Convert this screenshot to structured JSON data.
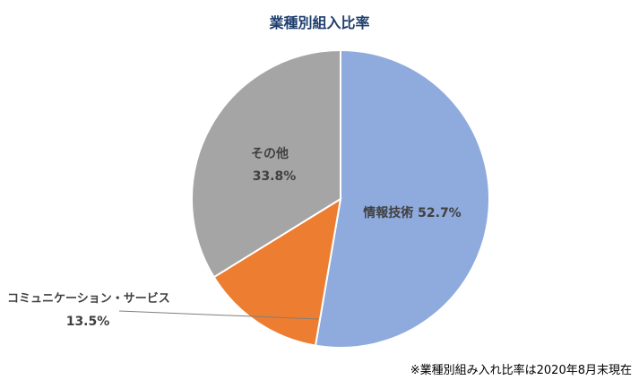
{
  "chart_data": {
    "type": "pie",
    "title": "業種別組入比率",
    "slices": [
      {
        "label": "情報技術",
        "value": 52.7,
        "display": "52.7%",
        "color": "#8faadc"
      },
      {
        "label": "コミュニケーション・サービス",
        "value": 13.5,
        "display": "13.5%",
        "color": "#ed7d31"
      },
      {
        "label": "その他",
        "value": 33.8,
        "display": "33.8%",
        "color": "#a5a5a5"
      }
    ],
    "start_angle_deg": 0,
    "direction": "clockwise",
    "legend": "none"
  },
  "footnote": "※業種別組み入れ比率は2020年8月末現在"
}
